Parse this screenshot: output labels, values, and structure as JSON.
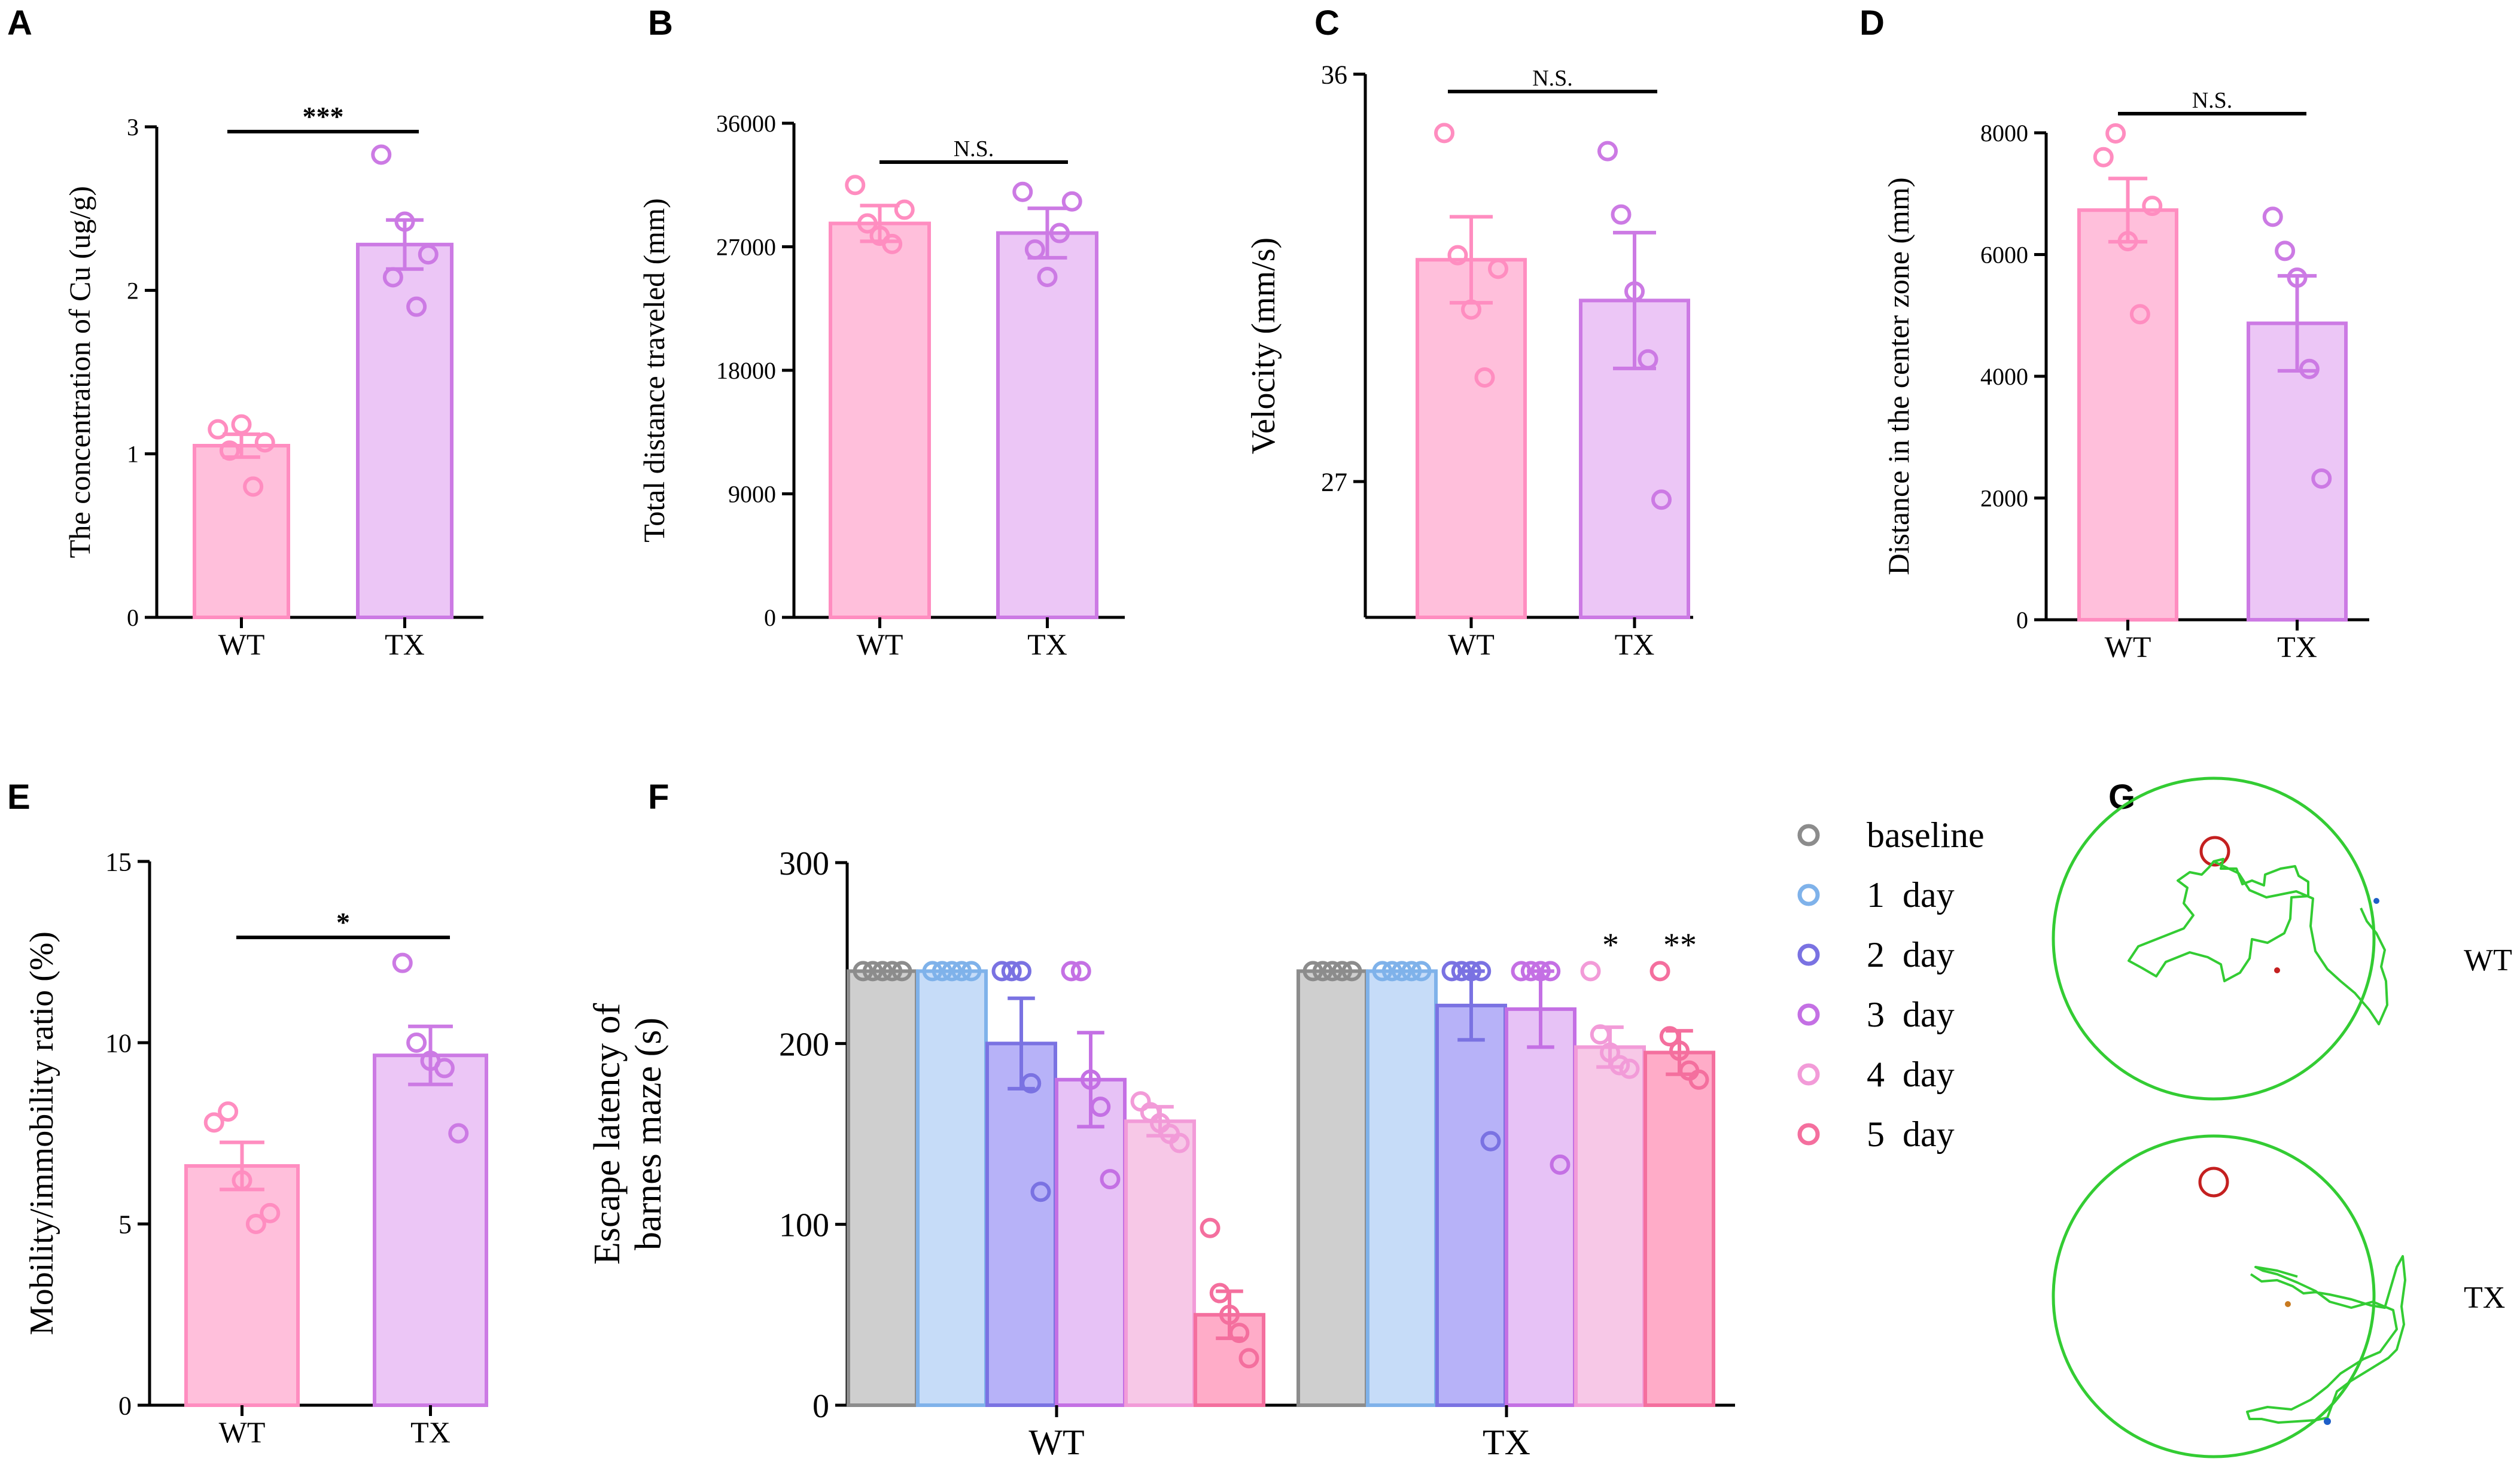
{
  "palette": {
    "wt_fill": "#ffbfdb",
    "wt_stroke": "#ff8dc0",
    "tx_fill": "#ecc6f6",
    "tx_stroke": "#cc7ae4",
    "baseline_fill": "#cfcfcf",
    "baseline_stroke": "#8c8c8c",
    "d1_fill": "#c6dcf8",
    "d1_stroke": "#7fb2ea",
    "d2_fill": "#b7b2f8",
    "d2_stroke": "#7a72e2",
    "d3_fill": "#e7c2f6",
    "d3_stroke": "#c470e4",
    "d4_fill": "#f7c8e7",
    "d4_stroke": "#f29bd8",
    "d5_fill": "#ffacc8",
    "d5_stroke": "#f46f9e",
    "track_green": "#33cc33",
    "start_red": "#c42020"
  },
  "chart_data": [
    {
      "panel": "A",
      "type": "bar",
      "categories": [
        "WT",
        "TX"
      ],
      "values": [
        1.05,
        2.28
      ],
      "sem": [
        0.07,
        0.15
      ],
      "points": [
        [
          1.15,
          1.02,
          1.18,
          0.8,
          1.07
        ],
        [
          2.83,
          2.08,
          2.42,
          1.9,
          2.22
        ]
      ],
      "ylabel": "The concentration of Cu (ug/g)",
      "ylim": [
        0,
        3
      ],
      "yticks": [
        "0",
        "1",
        "2",
        "3"
      ],
      "significance": "***"
    },
    {
      "panel": "B",
      "type": "bar",
      "categories": [
        "WT",
        "TX"
      ],
      "values": [
        28700,
        28000
      ],
      "sem": [
        1300,
        1800
      ],
      "points": [
        [
          31500,
          28700,
          27800,
          27200,
          29700
        ],
        [
          31000,
          26800,
          24800,
          28000,
          30300
        ]
      ],
      "ylabel": "Total distance traveled (mm)",
      "ylim": [
        0,
        36000
      ],
      "yticks": [
        "0",
        "9000",
        "18000",
        "27000",
        "36000"
      ],
      "significance": "N.S."
    },
    {
      "panel": "C",
      "type": "bar",
      "categories": [
        "WT",
        "TX"
      ],
      "values": [
        31.9,
        31.0
      ],
      "sem": [
        0.95,
        1.5
      ],
      "points": [
        [
          34.7,
          32.0,
          30.8,
          29.3,
          31.7
        ],
        [
          34.3,
          32.9,
          31.2,
          29.7,
          26.6
        ]
      ],
      "ylabel": "Velocity (mm/s)",
      "ylim": [
        24,
        36
      ],
      "yticks": [
        "27",
        "36"
      ],
      "significance": "N.S."
    },
    {
      "panel": "D",
      "type": "bar",
      "categories": [
        "WT",
        "TX"
      ],
      "values": [
        6730,
        4870
      ],
      "sem": [
        520,
        780
      ],
      "points": [
        [
          7600,
          7990,
          6220,
          5020,
          6800
        ],
        [
          6620,
          6060,
          5620,
          4120,
          2320
        ]
      ],
      "ylabel": "Distance in the center zone (mm)",
      "ylim": [
        0,
        8000
      ],
      "yticks": [
        "0",
        "2000",
        "4000",
        "6000",
        "8000"
      ],
      "significance": "N.S."
    },
    {
      "panel": "E",
      "type": "bar",
      "categories": [
        "WT",
        "TX"
      ],
      "values": [
        6.6,
        9.65
      ],
      "sem": [
        0.65,
        0.8
      ],
      "points": [
        [
          7.8,
          8.1,
          6.2,
          5.0,
          5.3
        ],
        [
          12.2,
          10.0,
          9.5,
          9.3,
          7.5
        ]
      ],
      "ylabel": "Mobility/immobility ratio (%)",
      "ylim": [
        0,
        15
      ],
      "yticks": [
        "0",
        "5",
        "10",
        "15"
      ],
      "significance": "*"
    },
    {
      "panel": "F",
      "type": "bar",
      "categories": [
        "WT",
        "TX"
      ],
      "ylabel_lines": [
        "Escape latency of",
        "barnes maze (s)"
      ],
      "ylim": [
        0,
        300
      ],
      "yticks": [
        "0",
        "100",
        "200",
        "300"
      ],
      "series": [
        {
          "name": "baseline",
          "values": [
            240,
            240
          ],
          "sem": [
            0,
            0
          ],
          "points": [
            [
              240,
              240,
              240,
              240,
              240
            ],
            [
              240,
              240,
              240,
              240,
              240
            ]
          ],
          "significance": [
            "",
            ""
          ]
        },
        {
          "name": "1  day",
          "values": [
            240,
            240
          ],
          "sem": [
            0,
            0
          ],
          "points": [
            [
              240,
              240,
              240,
              240,
              240
            ],
            [
              240,
              240,
              240,
              240,
              240
            ]
          ],
          "significance": [
            "",
            ""
          ]
        },
        {
          "name": "2  day",
          "values": [
            200,
            221
          ],
          "sem": [
            25,
            19
          ],
          "points": [
            [
              240,
              240,
              240,
              178,
              118
            ],
            [
              240,
              240,
              240,
              240,
              146
            ]
          ],
          "significance": [
            "",
            ""
          ]
        },
        {
          "name": "3  day",
          "values": [
            180,
            219
          ],
          "sem": [
            26,
            21
          ],
          "points": [
            [
              240,
              240,
              180,
              165,
              125
            ],
            [
              240,
              240,
              240,
              240,
              133
            ]
          ],
          "significance": [
            "",
            ""
          ]
        },
        {
          "name": "4  day",
          "values": [
            157,
            198
          ],
          "sem": [
            8,
            11
          ],
          "points": [
            [
              168,
              162,
              156,
              150,
              145
            ],
            [
              240,
              205,
              195,
              188,
              186
            ]
          ],
          "significance": [
            "",
            "*"
          ]
        },
        {
          "name": "5  day",
          "values": [
            50,
            195
          ],
          "sem": [
            13,
            12
          ],
          "points": [
            [
              98,
              62,
              50,
              40,
              26
            ],
            [
              240,
              204,
              196,
              185,
              180
            ]
          ],
          "significance": [
            "",
            "**"
          ]
        }
      ]
    }
  ],
  "panels": {
    "A": {
      "letter": "A"
    },
    "B": {
      "letter": "B"
    },
    "C": {
      "letter": "C"
    },
    "D": {
      "letter": "D"
    },
    "E": {
      "letter": "E"
    },
    "F": {
      "letter": "F"
    },
    "G": {
      "letter": "G",
      "labels": [
        "WT",
        "TX"
      ]
    }
  }
}
